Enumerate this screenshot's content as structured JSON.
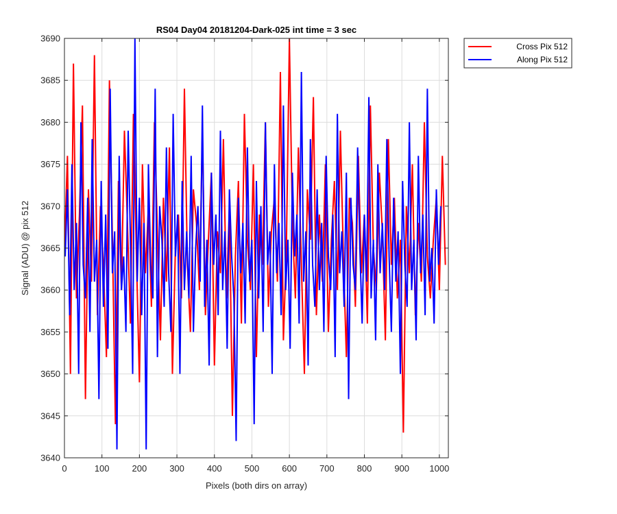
{
  "chart_data": {
    "type": "line",
    "title": "RS04 Day04 20181204-Dark-025 int time = 3 sec",
    "xlabel": "Pixels (both dirs on array)",
    "ylabel": "Signal (ADU) @ pix 512",
    "xlim": [
      0,
      1024
    ],
    "ylim": [
      3640,
      3690
    ],
    "xticks": [
      0,
      100,
      200,
      300,
      400,
      500,
      600,
      700,
      800,
      900,
      1000
    ],
    "yticks": [
      3640,
      3645,
      3650,
      3655,
      3660,
      3665,
      3670,
      3675,
      3680,
      3685,
      3690
    ],
    "grid": true,
    "legend_position": "outside-top-right",
    "series": [
      {
        "name": "Cross Pix 512",
        "color": "#ff0000",
        "x_start": 0,
        "x_step": 8,
        "values": [
          3665,
          3676,
          3650,
          3687,
          3659,
          3669,
          3682,
          3647,
          3672,
          3661,
          3688,
          3657,
          3670,
          3663,
          3652,
          3685,
          3666,
          3644,
          3673,
          3660,
          3679,
          3668,
          3656,
          3681,
          3664,
          3649,
          3675,
          3662,
          3670,
          3658,
          3680,
          3667,
          3654,
          3671,
          3661,
          3677,
          3650,
          3665,
          3669,
          3659,
          3684,
          3663,
          3655,
          3672,
          3668,
          3660,
          3679,
          3657,
          3666,
          3674,
          3651,
          3667,
          3662,
          3678,
          3659,
          3670,
          3645,
          3664,
          3673,
          3656,
          3681,
          3666,
          3660,
          3675,
          3652,
          3669,
          3663,
          3680,
          3658,
          3667,
          3671,
          3661,
          3686,
          3654,
          3665,
          3690,
          3668,
          3659,
          3677,
          3663,
          3650,
          3672,
          3666,
          3683,
          3657,
          3669,
          3661,
          3675,
          3655,
          3666,
          3673,
          3660,
          3679,
          3664,
          3652,
          3671,
          3668,
          3658,
          3676,
          3662,
          3669,
          3656,
          3682,
          3665,
          3660,
          3674,
          3667,
          3654,
          3678,
          3663,
          3671,
          3659,
          3666,
          3643,
          3670,
          3662,
          3675,
          3657,
          3668,
          3661,
          3680,
          3664,
          3659,
          3666,
          3671,
          3660,
          3676,
          3663
        ]
      },
      {
        "name": "Along Pix 512",
        "color": "#0000ff",
        "x_start": 2,
        "x_step": 6,
        "values": [
          3664,
          3672,
          3657,
          3675,
          3660,
          3668,
          3650,
          3680,
          3663,
          3659,
          3671,
          3655,
          3678,
          3661,
          3666,
          3647,
          3673,
          3658,
          3669,
          3653,
          3684,
          3662,
          3667,
          3641,
          3676,
          3660,
          3664,
          3655,
          3679,
          3666,
          3650,
          3690,
          3661,
          3671,
          3657,
          3668,
          3641,
          3675,
          3663,
          3659,
          3684,
          3652,
          3670,
          3666,
          3658,
          3677,
          3662,
          3655,
          3681,
          3664,
          3669,
          3650,
          3673,
          3660,
          3667,
          3659,
          3676,
          3655,
          3665,
          3670,
          3661,
          3682,
          3658,
          3666,
          3651,
          3674,
          3663,
          3669,
          3657,
          3679,
          3660,
          3667,
          3653,
          3672,
          3664,
          3659,
          3642,
          3671,
          3662,
          3668,
          3656,
          3677,
          3661,
          3666,
          3644,
          3673,
          3659,
          3670,
          3655,
          3680,
          3663,
          3667,
          3650,
          3675,
          3662,
          3668,
          3657,
          3682,
          3660,
          3666,
          3653,
          3674,
          3664,
          3669,
          3656,
          3686,
          3661,
          3667,
          3651,
          3678,
          3663,
          3658,
          3672,
          3660,
          3668,
          3655,
          3676,
          3664,
          3660,
          3669,
          3652,
          3681,
          3662,
          3667,
          3658,
          3674,
          3647,
          3671,
          3663,
          3660,
          3677,
          3665,
          3656,
          3669,
          3661,
          3683,
          3659,
          3666,
          3654,
          3675,
          3662,
          3668,
          3660,
          3678,
          3664,
          3655,
          3671,
          3661,
          3667,
          3650,
          3673,
          3663,
          3658,
          3680,
          3660,
          3666,
          3654,
          3676,
          3662,
          3669,
          3657,
          3684,
          3661,
          3665,
          3656,
          3672,
          3663,
          3670
        ]
      }
    ]
  }
}
